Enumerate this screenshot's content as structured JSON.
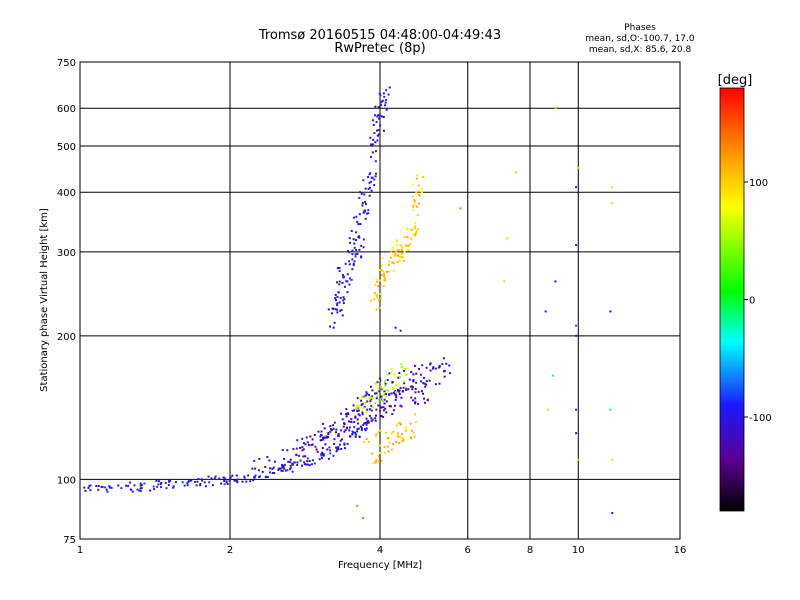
{
  "chart_data": {
    "type": "scatter",
    "title": "Tromsø 20160515 04:48:00-04:49:43",
    "subtitle": "RwPretec (8p)",
    "xlabel": "Frequency [MHz]",
    "ylabel": "Stationary phase Virtual Height [km]",
    "x_scale": "log",
    "y_scale": "log",
    "xlim": [
      1,
      16
    ],
    "ylim": [
      75,
      750
    ],
    "x_ticks": [
      1,
      2,
      4,
      6,
      8,
      10,
      16
    ],
    "x_gridlines": [
      2,
      4,
      6,
      8,
      10
    ],
    "y_ticks": [
      75,
      100,
      200,
      300,
      400,
      500,
      600,
      750
    ],
    "y_gridlines": [
      100,
      200,
      300,
      400,
      500,
      600
    ],
    "grid": true,
    "stats": {
      "heading": "Phases",
      "line1": "mean, sd,O:-100.7, 17.0",
      "line2": "mean, sd,X:  85.6, 20.8"
    },
    "colorbar": {
      "label": "[deg]",
      "min": -180,
      "max": 180,
      "ticks": [
        100,
        0,
        -100
      ],
      "colormap": "rainbow (black-purple-blue-cyan-green-yellow-red)"
    },
    "traces": [
      {
        "x": [
          1.0,
          1.2,
          1.4,
          1.6,
          1.8,
          2.0,
          2.3,
          2.6,
          3.0,
          3.3,
          3.6,
          3.9
        ],
        "y": [
          95,
          96,
          97,
          98,
          99,
          100,
          102,
          105,
          110,
          116,
          125,
          135
        ],
        "phase": -100,
        "spread": 0.02
      },
      {
        "x": [
          2.2,
          2.6,
          3.0,
          3.3,
          3.6,
          3.9,
          4.2,
          4.6,
          5.0,
          5.5
        ],
        "y": [
          105,
          110,
          120,
          130,
          140,
          150,
          158,
          162,
          165,
          170
        ],
        "phase": -110,
        "spread": 0.05
      },
      {
        "x": [
          2.6,
          3.0,
          3.3,
          3.6,
          3.9,
          4.2,
          4.6,
          5.0
        ],
        "y": [
          110,
          118,
          125,
          135,
          140,
          145,
          150,
          155
        ],
        "phase": -120,
        "spread": 0.05
      },
      {
        "x": [
          3.2,
          3.3,
          3.4,
          3.5,
          3.6,
          3.7,
          3.8,
          3.9,
          4.0,
          4.1
        ],
        "y": [
          220,
          240,
          265,
          290,
          320,
          360,
          420,
          500,
          580,
          640
        ],
        "phase": -105,
        "spread": 0.06
      },
      {
        "x": [
          3.9,
          4.0,
          4.2,
          4.4,
          4.6,
          4.7,
          4.8
        ],
        "y": [
          230,
          260,
          290,
          300,
          320,
          360,
          430
        ],
        "phase": 100,
        "spread": 0.05
      },
      {
        "x": [
          3.8,
          4.1,
          4.4,
          4.7
        ],
        "y": [
          115,
          120,
          125,
          130
        ],
        "phase": 105,
        "spread": 0.06
      },
      {
        "x": [
          3.6,
          3.9,
          4.2,
          4.5
        ],
        "y": [
          140,
          150,
          160,
          165
        ],
        "phase": 60,
        "spread": 0.05
      }
    ],
    "isolated_points": [
      {
        "x": 7.2,
        "y": 320,
        "phase": 100
      },
      {
        "x": 7.1,
        "y": 260,
        "phase": 100
      },
      {
        "x": 7.5,
        "y": 440,
        "phase": 100
      },
      {
        "x": 8.6,
        "y": 225,
        "phase": -100
      },
      {
        "x": 9.0,
        "y": 260,
        "phase": -110
      },
      {
        "x": 9.0,
        "y": 600,
        "phase": 110
      },
      {
        "x": 9.9,
        "y": 410,
        "phase": -100
      },
      {
        "x": 9.9,
        "y": 310,
        "phase": -100
      },
      {
        "x": 9.9,
        "y": 200,
        "phase": -100
      },
      {
        "x": 9.9,
        "y": 210,
        "phase": -80
      },
      {
        "x": 9.9,
        "y": 140,
        "phase": -100
      },
      {
        "x": 9.9,
        "y": 125,
        "phase": -120
      },
      {
        "x": 10.0,
        "y": 110,
        "phase": 100
      },
      {
        "x": 10.0,
        "y": 450,
        "phase": 100
      },
      {
        "x": 11.7,
        "y": 410,
        "phase": 100
      },
      {
        "x": 11.7,
        "y": 380,
        "phase": 100
      },
      {
        "x": 11.6,
        "y": 225,
        "phase": -100
      },
      {
        "x": 11.6,
        "y": 140,
        "phase": -40
      },
      {
        "x": 11.7,
        "y": 110,
        "phase": 60
      },
      {
        "x": 11.7,
        "y": 85,
        "phase": -100
      },
      {
        "x": 8.7,
        "y": 140,
        "phase": 100
      },
      {
        "x": 8.9,
        "y": 165,
        "phase": -40
      },
      {
        "x": 5.8,
        "y": 370,
        "phase": 140
      },
      {
        "x": 4.3,
        "y": 208,
        "phase": -100
      },
      {
        "x": 4.4,
        "y": 205,
        "phase": -110
      },
      {
        "x": 3.7,
        "y": 83,
        "phase": 140
      },
      {
        "x": 3.6,
        "y": 88,
        "phase": 130
      }
    ]
  }
}
